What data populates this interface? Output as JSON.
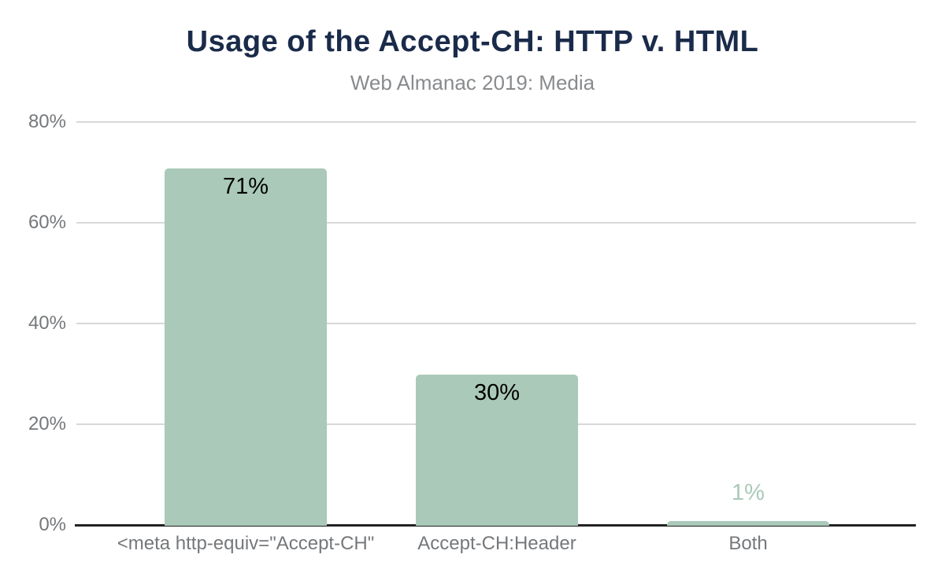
{
  "chart_data": {
    "type": "bar",
    "title": "Usage of the Accept-CH: HTTP v. HTML",
    "subtitle": "Web Almanac 2019: Media",
    "categories": [
      "<meta http-equiv=\"Accept-CH\"",
      "Accept-CH:Header",
      "Both"
    ],
    "values": [
      71,
      30,
      1
    ],
    "value_labels": [
      "71%",
      "30%",
      "1%"
    ],
    "xlabel": "",
    "ylabel": "",
    "ylim": [
      0,
      80
    ],
    "yticks": [
      {
        "value": 80,
        "label": "80%"
      },
      {
        "value": 60,
        "label": "60%"
      },
      {
        "value": 40,
        "label": "40%"
      },
      {
        "value": 20,
        "label": "20%"
      },
      {
        "value": 0,
        "label": "0%"
      }
    ],
    "grid": true,
    "legend": false,
    "colors": {
      "bar_fill": "#aac9b9",
      "title": "#1a2b4a",
      "subtitle": "#888b8e",
      "axis_label": "#75787b",
      "gridline": "#d8d8d8",
      "axis_line": "#222222",
      "value_label_inside": "#000000",
      "value_label_outside": "#aac9b9"
    }
  }
}
